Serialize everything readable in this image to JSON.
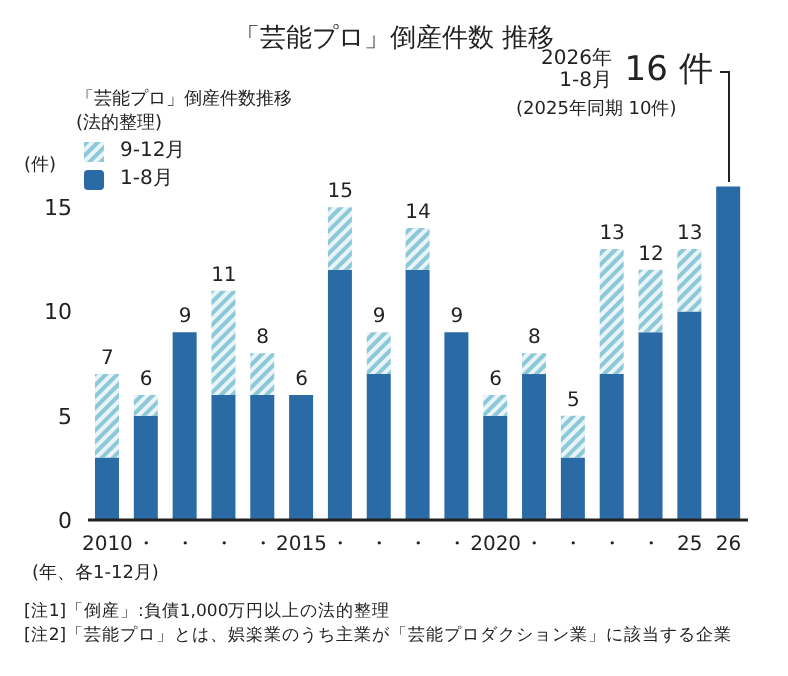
{
  "chart_data": {
    "type": "bar",
    "title": "「芸能プロ」倒産件数 推移",
    "categories": [
      "2010",
      "・",
      "・",
      "・",
      "・",
      "2015",
      "・",
      "・",
      "・",
      "・",
      "2020",
      "・",
      "・",
      "・",
      "・",
      "25",
      "26"
    ],
    "series": [
      {
        "name": "1-8月",
        "color": "#2a6aa5",
        "values": [
          3,
          5,
          9,
          6,
          6,
          6,
          12,
          7,
          12,
          9,
          5,
          7,
          3,
          7,
          9,
          10,
          16
        ]
      },
      {
        "name": "9-12月",
        "color": "#8cc8d8",
        "values": [
          4,
          1,
          0,
          5,
          2,
          0,
          3,
          2,
          2,
          0,
          1,
          1,
          2,
          6,
          3,
          3,
          null
        ]
      }
    ],
    "stacked": true,
    "totals": [
      "7",
      "6",
      "9",
      "11",
      "8",
      "6",
      "15",
      "9",
      "14",
      "9",
      "6",
      "8",
      "5",
      "13",
      "12",
      "13",
      null
    ],
    "ylim": [
      0,
      16.5
    ],
    "yticks": [
      0,
      5,
      10,
      15
    ],
    "ylabel": "(件)",
    "xlabel": "(年、各1-12月)",
    "legend_title": "「芸能プロ」倒産件数推移(法的整理)",
    "legend": "top left",
    "grid": false,
    "annotations": [
      "2026年\n1-8月",
      {
        "text": "16 件",
        "x": "26",
        "y": 16
      },
      "(2025年同期 10件)",
      "[注1]「倒産」:負債1,000万円以上の法的整理",
      "[注2]「芸能プロ」とは、娯楽業のうち主業が「芸能プロダクション業」に該当する企業"
    ]
  }
}
